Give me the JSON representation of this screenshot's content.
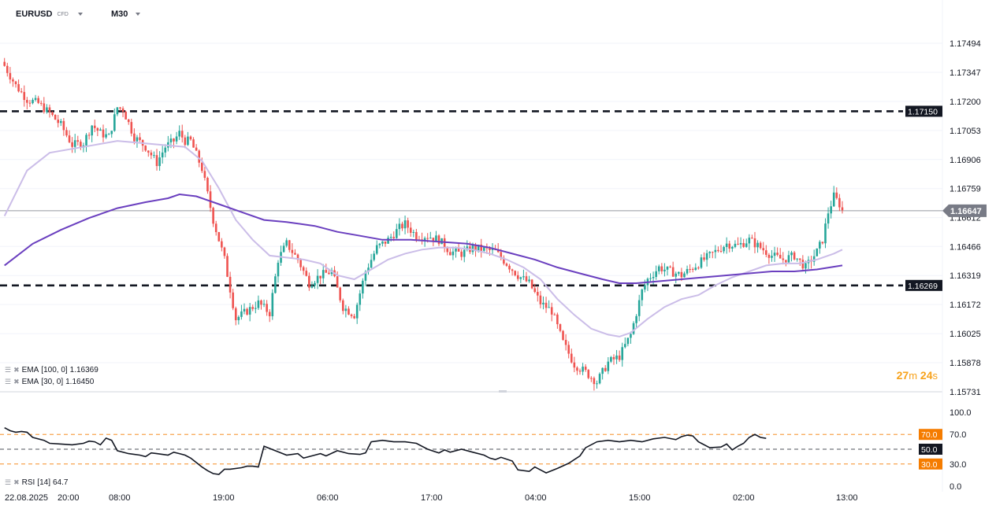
{
  "header": {
    "symbol": "EURUSD",
    "symbol_type": "CFD",
    "timeframe": "M30"
  },
  "indicators": {
    "ema100_label": "EMA",
    "ema100_params": "[100, 0]",
    "ema100_value": "1.16369",
    "ema30_label": "EMA",
    "ema30_params": "[30, 0]",
    "ema30_value": "1.16450",
    "rsi_label": "RSI",
    "rsi_params": "[14]",
    "rsi_value": "64.7"
  },
  "timer": {
    "minutes": "27",
    "m": "m",
    "seconds": "24",
    "s": "s"
  },
  "colors": {
    "up": "#26a69a",
    "down": "#ef5350",
    "ema100": "#6a3fbf",
    "ema30": "#cbbde8",
    "rsi": "#131722",
    "rsi_band": "#f57c00"
  },
  "chart_data": {
    "type": "candlestick",
    "price_ticks": [
      "1.17494",
      "1.17347",
      "1.17200",
      "1.17053",
      "1.16906",
      "1.16759",
      "1.16612",
      "1.16466",
      "1.16319",
      "1.16172",
      "1.16025",
      "1.15878",
      "1.15731"
    ],
    "ylim": [
      1.15731,
      1.17494
    ],
    "levels": [
      {
        "price": 1.1715,
        "label": "1.17150"
      },
      {
        "price": 1.16269,
        "label": "1.16269"
      }
    ],
    "current_price": {
      "price": 1.16647,
      "label": "1.16647"
    },
    "x_labels": [
      "22.08.2025",
      "20:00",
      "08:00",
      "19:00",
      "06:00",
      "17:00",
      "04:00",
      "15:00",
      "02:00",
      "13:00"
    ],
    "close_path": [
      [
        0,
        1.1738
      ],
      [
        4,
        1.1728
      ],
      [
        8,
        1.1721
      ],
      [
        12,
        1.1719
      ],
      [
        16,
        1.1714
      ],
      [
        20,
        1.1708
      ],
      [
        24,
        1.1698
      ],
      [
        28,
        1.1699
      ],
      [
        31,
        1.1708
      ],
      [
        34,
        1.1704
      ],
      [
        37,
        1.1702
      ],
      [
        40,
        1.1717
      ],
      [
        42,
        1.1716
      ],
      [
        46,
        1.1702
      ],
      [
        50,
        1.1697
      ],
      [
        54,
        1.1689
      ],
      [
        57,
        1.1697
      ],
      [
        60,
        1.17
      ],
      [
        62,
        1.1704
      ],
      [
        64,
        1.17
      ],
      [
        66,
        1.17
      ],
      [
        70,
        1.1686
      ],
      [
        74,
        1.166
      ],
      [
        78,
        1.164
      ],
      [
        82,
        1.161
      ],
      [
        86,
        1.1614
      ],
      [
        90,
        1.1618
      ],
      [
        94,
        1.1613
      ],
      [
        97,
        1.164
      ],
      [
        100,
        1.1648
      ],
      [
        104,
        1.164
      ],
      [
        108,
        1.1628
      ],
      [
        112,
        1.1632
      ],
      [
        116,
        1.1634
      ],
      [
        120,
        1.1616
      ],
      [
        124,
        1.1612
      ],
      [
        128,
        1.1634
      ],
      [
        132,
        1.1646
      ],
      [
        136,
        1.165
      ],
      [
        140,
        1.1656
      ],
      [
        142,
        1.1658
      ],
      [
        146,
        1.1652
      ],
      [
        150,
        1.1652
      ],
      [
        154,
        1.165
      ],
      [
        158,
        1.1644
      ],
      [
        162,
        1.1643
      ],
      [
        166,
        1.1646
      ],
      [
        170,
        1.1645
      ],
      [
        174,
        1.1644
      ],
      [
        178,
        1.1638
      ],
      [
        182,
        1.1632
      ],
      [
        186,
        1.1628
      ],
      [
        190,
        1.1618
      ],
      [
        194,
        1.1614
      ],
      [
        198,
        1.1598
      ],
      [
        202,
        1.1587
      ],
      [
        206,
        1.1583
      ],
      [
        210,
        1.1578
      ],
      [
        214,
        1.1588
      ],
      [
        218,
        1.1591
      ],
      [
        222,
        1.1602
      ],
      [
        226,
        1.1624
      ],
      [
        228,
        1.163
      ],
      [
        232,
        1.1636
      ],
      [
        236,
        1.1634
      ],
      [
        240,
        1.1632
      ],
      [
        244,
        1.1636
      ],
      [
        248,
        1.164
      ],
      [
        252,
        1.1644
      ],
      [
        256,
        1.1648
      ],
      [
        260,
        1.1647
      ],
      [
        264,
        1.165
      ],
      [
        268,
        1.1646
      ],
      [
        272,
        1.1642
      ],
      [
        276,
        1.164
      ],
      [
        280,
        1.1642
      ],
      [
        284,
        1.1636
      ],
      [
        288,
        1.1644
      ],
      [
        290,
        1.165
      ],
      [
        292,
        1.1664
      ],
      [
        294,
        1.1672
      ],
      [
        296,
        1.1668
      ],
      [
        297,
        1.16647
      ]
    ],
    "ema30_path": [
      [
        0,
        1.1662
      ],
      [
        8,
        1.1685
      ],
      [
        16,
        1.1694
      ],
      [
        24,
        1.1696
      ],
      [
        32,
        1.1698
      ],
      [
        40,
        1.17
      ],
      [
        48,
        1.1699
      ],
      [
        56,
        1.1698
      ],
      [
        64,
        1.1697
      ],
      [
        70,
        1.169
      ],
      [
        76,
        1.1676
      ],
      [
        82,
        1.166
      ],
      [
        88,
        1.165
      ],
      [
        94,
        1.1642
      ],
      [
        100,
        1.1641
      ],
      [
        106,
        1.164
      ],
      [
        112,
        1.1638
      ],
      [
        118,
        1.1632
      ],
      [
        124,
        1.163
      ],
      [
        130,
        1.1635
      ],
      [
        136,
        1.164
      ],
      [
        142,
        1.1643
      ],
      [
        148,
        1.1645
      ],
      [
        154,
        1.1646
      ],
      [
        160,
        1.1646
      ],
      [
        166,
        1.1645
      ],
      [
        172,
        1.1643
      ],
      [
        178,
        1.164
      ],
      [
        184,
        1.1636
      ],
      [
        190,
        1.163
      ],
      [
        196,
        1.162
      ],
      [
        202,
        1.1612
      ],
      [
        208,
        1.1605
      ],
      [
        214,
        1.1602
      ],
      [
        218,
        1.1601
      ],
      [
        222,
        1.1603
      ],
      [
        228,
        1.161
      ],
      [
        234,
        1.1616
      ],
      [
        240,
        1.162
      ],
      [
        246,
        1.1622
      ],
      [
        252,
        1.1627
      ],
      [
        258,
        1.1631
      ],
      [
        264,
        1.1634
      ],
      [
        270,
        1.1637
      ],
      [
        276,
        1.1638
      ],
      [
        282,
        1.1638
      ],
      [
        288,
        1.164
      ],
      [
        294,
        1.1643
      ],
      [
        297,
        1.1645
      ]
    ],
    "ema100_path": [
      [
        0,
        1.1637
      ],
      [
        10,
        1.1648
      ],
      [
        20,
        1.1655
      ],
      [
        30,
        1.1661
      ],
      [
        40,
        1.1666
      ],
      [
        50,
        1.1669
      ],
      [
        58,
        1.1671
      ],
      [
        62,
        1.1673
      ],
      [
        68,
        1.1672
      ],
      [
        76,
        1.1668
      ],
      [
        84,
        1.1664
      ],
      [
        92,
        1.166
      ],
      [
        100,
        1.1659
      ],
      [
        110,
        1.1657
      ],
      [
        118,
        1.1654
      ],
      [
        126,
        1.1652
      ],
      [
        134,
        1.165
      ],
      [
        144,
        1.165
      ],
      [
        154,
        1.1649
      ],
      [
        164,
        1.1648
      ],
      [
        172,
        1.1646
      ],
      [
        180,
        1.1643
      ],
      [
        188,
        1.164
      ],
      [
        196,
        1.1636
      ],
      [
        204,
        1.1633
      ],
      [
        212,
        1.163
      ],
      [
        218,
        1.1628
      ],
      [
        224,
        1.1628
      ],
      [
        232,
        1.1629
      ],
      [
        240,
        1.163
      ],
      [
        248,
        1.1631
      ],
      [
        256,
        1.1632
      ],
      [
        264,
        1.1633
      ],
      [
        272,
        1.1634
      ],
      [
        280,
        1.1634
      ],
      [
        288,
        1.1635
      ],
      [
        297,
        1.1637
      ]
    ],
    "rsi": {
      "ylim": [
        0,
        100
      ],
      "ticks": [
        "100.0",
        "70.0",
        "30.0",
        "0.0"
      ],
      "levels": [
        {
          "value": 70,
          "label": "70.0"
        },
        {
          "value": 50,
          "label": "50.0"
        },
        {
          "value": 30,
          "label": "30.0"
        }
      ],
      "path": [
        [
          0,
          79
        ],
        [
          2,
          75
        ],
        [
          4,
          73
        ],
        [
          6,
          74
        ],
        [
          8,
          73
        ],
        [
          10,
          66
        ],
        [
          14,
          62
        ],
        [
          16,
          58
        ],
        [
          20,
          57
        ],
        [
          24,
          56
        ],
        [
          28,
          58
        ],
        [
          30,
          61
        ],
        [
          32,
          60
        ],
        [
          34,
          56
        ],
        [
          36,
          65
        ],
        [
          38,
          62
        ],
        [
          40,
          48
        ],
        [
          44,
          44
        ],
        [
          48,
          42
        ],
        [
          50,
          40
        ],
        [
          52,
          45
        ],
        [
          54,
          44
        ],
        [
          56,
          43
        ],
        [
          58,
          42
        ],
        [
          60,
          46
        ],
        [
          62,
          44
        ],
        [
          64,
          42
        ],
        [
          66,
          38
        ],
        [
          70,
          26
        ],
        [
          72,
          21
        ],
        [
          74,
          17
        ],
        [
          76,
          16
        ],
        [
          78,
          23
        ],
        [
          80,
          23
        ],
        [
          84,
          25
        ],
        [
          86,
          27
        ],
        [
          88,
          27
        ],
        [
          90,
          26
        ],
        [
          92,
          54
        ],
        [
          96,
          48
        ],
        [
          100,
          42
        ],
        [
          104,
          44
        ],
        [
          106,
          38
        ],
        [
          110,
          42
        ],
        [
          112,
          44
        ],
        [
          114,
          41
        ],
        [
          118,
          48
        ],
        [
          122,
          44
        ],
        [
          126,
          43
        ],
        [
          128,
          45
        ],
        [
          130,
          60
        ],
        [
          134,
          62
        ],
        [
          138,
          60
        ],
        [
          142,
          60
        ],
        [
          146,
          58
        ],
        [
          150,
          50
        ],
        [
          154,
          45
        ],
        [
          156,
          49
        ],
        [
          158,
          46
        ],
        [
          162,
          50
        ],
        [
          166,
          46
        ],
        [
          170,
          42
        ],
        [
          172,
          38
        ],
        [
          174,
          36
        ],
        [
          176,
          39
        ],
        [
          180,
          34
        ],
        [
          182,
          22
        ],
        [
          186,
          20
        ],
        [
          188,
          26
        ],
        [
          190,
          22
        ],
        [
          192,
          18
        ],
        [
          196,
          24
        ],
        [
          200,
          31
        ],
        [
          204,
          41
        ],
        [
          206,
          52
        ],
        [
          210,
          60
        ],
        [
          214,
          62
        ],
        [
          218,
          60
        ],
        [
          222,
          62
        ],
        [
          226,
          60
        ],
        [
          230,
          64
        ],
        [
          234,
          66
        ],
        [
          238,
          63
        ],
        [
          240,
          67
        ],
        [
          242,
          69
        ],
        [
          244,
          68
        ],
        [
          246,
          60
        ],
        [
          250,
          52
        ],
        [
          254,
          53
        ],
        [
          256,
          57
        ],
        [
          258,
          49
        ],
        [
          260,
          54
        ],
        [
          262,
          58
        ],
        [
          264,
          66
        ],
        [
          266,
          70
        ],
        [
          268,
          66
        ],
        [
          270,
          64.7
        ]
      ]
    }
  }
}
